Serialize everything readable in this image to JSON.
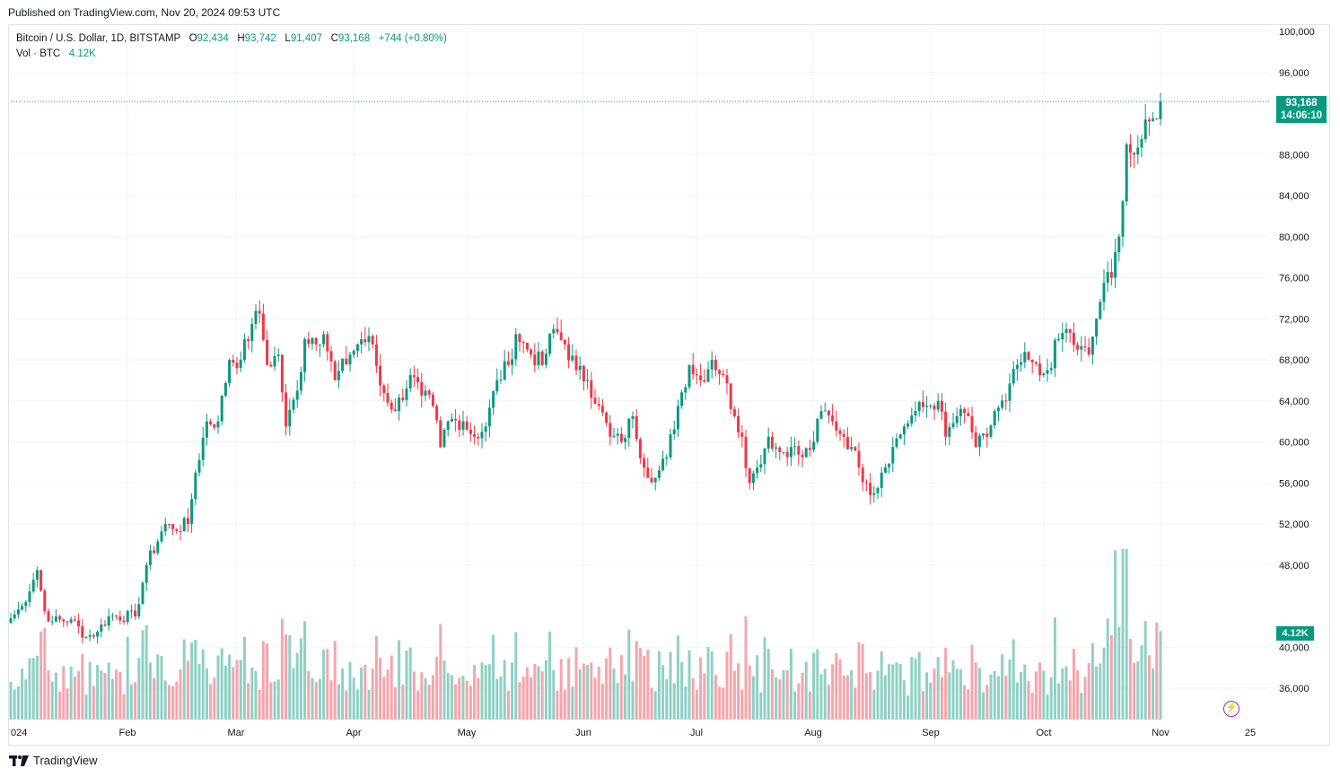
{
  "header": {
    "published": "Published on TradingView.com, Nov 20, 2024 09:53 UTC"
  },
  "legend": {
    "symbol": "Bitcoin / U.S. Dollar, 1D, BITSTAMP",
    "open_label": "O",
    "open": "92,434",
    "high_label": "H",
    "high": "93,742",
    "low_label": "L",
    "low": "91,407",
    "close_label": "C",
    "close": "93,168",
    "change": "+744 (+0.80%)",
    "vol_label": "Vol · BTC",
    "vol_value": "4.12K"
  },
  "price_tag": {
    "price": "93,168",
    "countdown": "14:06:10"
  },
  "vol_tag": "4.12K",
  "footer": {
    "brand": "TradingView"
  },
  "colors": {
    "up": "#089981",
    "down": "#f23645",
    "vol_up": "#8fd0c4",
    "vol_down": "#f5a5ab",
    "grid": "#f0f3fa"
  },
  "chart_data": {
    "type": "candlestick",
    "symbol": "BTCUSD",
    "interval": "1D",
    "ylim": [
      32000,
      101000
    ],
    "y_ticks": [
      "100,000",
      "96,000",
      "88,000",
      "84,000",
      "80,000",
      "76,000",
      "72,000",
      "68,000",
      "64,000",
      "60,000",
      "56,000",
      "52,000",
      "48,000",
      "40,000",
      "36,000"
    ],
    "x_ticks": [
      "024",
      "Feb",
      "Mar",
      "Apr",
      "May",
      "Jun",
      "Jul",
      "Aug",
      "Sep",
      "Oct",
      "Nov",
      "25"
    ],
    "last_price": 93168,
    "anchors": [
      [
        1,
        42800
      ],
      [
        4,
        44000
      ],
      [
        8,
        47500
      ],
      [
        10,
        43500
      ],
      [
        12,
        42500
      ],
      [
        17,
        42700
      ],
      [
        21,
        41000
      ],
      [
        24,
        41500
      ],
      [
        27,
        43000
      ],
      [
        34,
        43000
      ],
      [
        37,
        48000
      ],
      [
        42,
        52000
      ],
      [
        44,
        51500
      ],
      [
        48,
        52000
      ],
      [
        50,
        57000
      ],
      [
        53,
        62000
      ],
      [
        56,
        62000
      ],
      [
        59,
        68000
      ],
      [
        62,
        68000
      ],
      [
        65,
        71500
      ],
      [
        67,
        72500
      ],
      [
        69,
        67500
      ],
      [
        72,
        68500
      ],
      [
        74,
        61500
      ],
      [
        77,
        65000
      ],
      [
        79,
        70000
      ],
      [
        84,
        70500
      ],
      [
        87,
        66000
      ],
      [
        91,
        68500
      ],
      [
        94,
        70000
      ],
      [
        97,
        69500
      ],
      [
        99,
        65500
      ],
      [
        103,
        63000
      ],
      [
        107,
        66500
      ],
      [
        110,
        64500
      ],
      [
        113,
        63500
      ],
      [
        115,
        59500
      ],
      [
        117,
        62000
      ],
      [
        121,
        62000
      ],
      [
        124,
        60500
      ],
      [
        127,
        61500
      ],
      [
        130,
        66000
      ],
      [
        133,
        67500
      ],
      [
        135,
        70500
      ],
      [
        138,
        69000
      ],
      [
        142,
        67500
      ],
      [
        145,
        71000
      ],
      [
        148,
        69500
      ],
      [
        151,
        67000
      ],
      [
        154,
        66000
      ],
      [
        157,
        63500
      ],
      [
        160,
        60500
      ],
      [
        163,
        60000
      ],
      [
        166,
        62500
      ],
      [
        169,
        57500
      ],
      [
        172,
        56500
      ],
      [
        175,
        58500
      ],
      [
        178,
        63500
      ],
      [
        181,
        67500
      ],
      [
        184,
        66000
      ],
      [
        187,
        68000
      ],
      [
        190,
        66500
      ],
      [
        193,
        62500
      ],
      [
        195,
        60500
      ],
      [
        197,
        56000
      ],
      [
        199,
        57500
      ],
      [
        202,
        60500
      ],
      [
        205,
        59000
      ],
      [
        208,
        59500
      ],
      [
        211,
        58500
      ],
      [
        214,
        60000
      ],
      [
        216,
        63000
      ],
      [
        219,
        62000
      ],
      [
        222,
        60500
      ],
      [
        224,
        59500
      ],
      [
        226,
        57500
      ],
      [
        228,
        56000
      ],
      [
        230,
        55000
      ],
      [
        232,
        57000
      ],
      [
        235,
        59500
      ],
      [
        238,
        61500
      ],
      [
        241,
        63000
      ],
      [
        244,
        63500
      ],
      [
        247,
        64000
      ],
      [
        249,
        60500
      ],
      [
        252,
        62500
      ],
      [
        255,
        62500
      ],
      [
        257,
        59500
      ],
      [
        260,
        60500
      ],
      [
        262,
        63000
      ],
      [
        265,
        64000
      ],
      [
        268,
        67500
      ],
      [
        271,
        68000
      ],
      [
        274,
        66500
      ],
      [
        276,
        67000
      ],
      [
        279,
        70000
      ],
      [
        281,
        71000
      ],
      [
        284,
        69000
      ],
      [
        287,
        68500
      ],
      [
        289,
        72000
      ],
      [
        291,
        75500
      ],
      [
        293,
        76000
      ],
      [
        295,
        80000
      ],
      [
        297,
        89000
      ],
      [
        299,
        88000
      ],
      [
        301,
        89500
      ],
      [
        304,
        91500
      ],
      [
        306,
        93168
      ]
    ],
    "volume_range_btc": [
      0,
      7500
    ],
    "volume_scale_note": "relative daily volume"
  }
}
